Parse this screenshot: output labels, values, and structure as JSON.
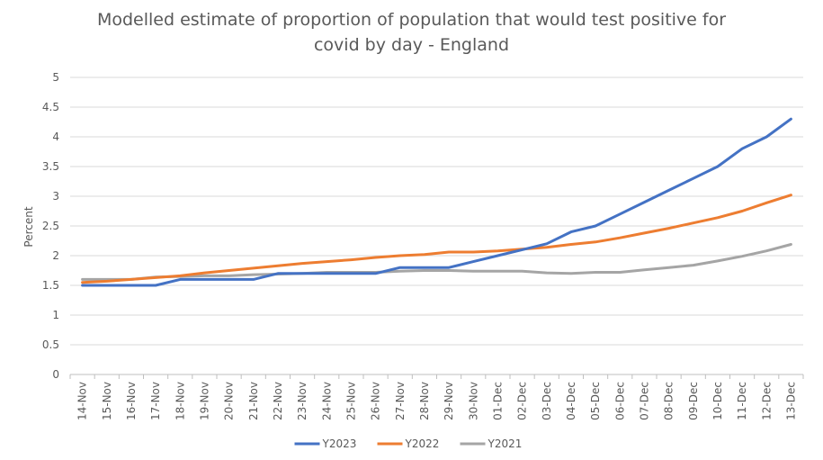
{
  "chart_data": {
    "type": "line",
    "title_line1": "Modelled estimate of proportion of population that would test positive for",
    "title_line2": "covid by day - England",
    "ylabel": "Percent",
    "xlabel": "",
    "ylim": [
      0,
      5
    ],
    "yticks": [
      "0",
      "0.5",
      "1",
      "1.5",
      "2",
      "2.5",
      "3",
      "3.5",
      "4",
      "4.5",
      "5"
    ],
    "ytick_values": [
      0,
      0.5,
      1,
      1.5,
      2,
      2.5,
      3,
      3.5,
      4,
      4.5,
      5
    ],
    "grid": true,
    "legend_position": "bottom",
    "categories": [
      "14-Nov",
      "15-Nov",
      "16-Nov",
      "17-Nov",
      "18-Nov",
      "19-Nov",
      "20-Nov",
      "21-Nov",
      "22-Nov",
      "23-Nov",
      "24-Nov",
      "25-Nov",
      "26-Nov",
      "27-Nov",
      "28-Nov",
      "29-Nov",
      "30-Nov",
      "01-Dec",
      "02-Dec",
      "03-Dec",
      "04-Dec",
      "05-Dec",
      "06-Dec",
      "07-Dec",
      "08-Dec",
      "09-Dec",
      "10-Dec",
      "11-Dec",
      "12-Dec",
      "13-Dec"
    ],
    "series": [
      {
        "name": "Y2023",
        "color": "#4472C4",
        "values": [
          1.5,
          1.5,
          1.5,
          1.5,
          1.6,
          1.6,
          1.6,
          1.6,
          1.7,
          1.7,
          1.7,
          1.7,
          1.7,
          1.8,
          1.8,
          1.8,
          1.9,
          2.0,
          2.1,
          2.2,
          2.4,
          2.5,
          2.7,
          2.9,
          3.1,
          3.3,
          3.5,
          3.8,
          4.0,
          4.3
        ]
      },
      {
        "name": "Y2022",
        "color": "#ED7D31",
        "values": [
          1.55,
          1.57,
          1.6,
          1.63,
          1.66,
          1.71,
          1.75,
          1.79,
          1.83,
          1.87,
          1.9,
          1.93,
          1.97,
          2.0,
          2.02,
          2.06,
          2.06,
          2.08,
          2.11,
          2.14,
          2.19,
          2.23,
          2.3,
          2.38,
          2.46,
          2.55,
          2.64,
          2.75,
          2.89,
          3.02
        ]
      },
      {
        "name": "Y2021",
        "color": "#A5A5A5",
        "values": [
          1.6,
          1.6,
          1.6,
          1.64,
          1.65,
          1.66,
          1.66,
          1.68,
          1.69,
          1.7,
          1.72,
          1.72,
          1.72,
          1.74,
          1.75,
          1.75,
          1.74,
          1.74,
          1.74,
          1.71,
          1.7,
          1.72,
          1.72,
          1.76,
          1.8,
          1.84,
          1.91,
          1.99,
          2.08,
          2.19
        ]
      }
    ]
  }
}
